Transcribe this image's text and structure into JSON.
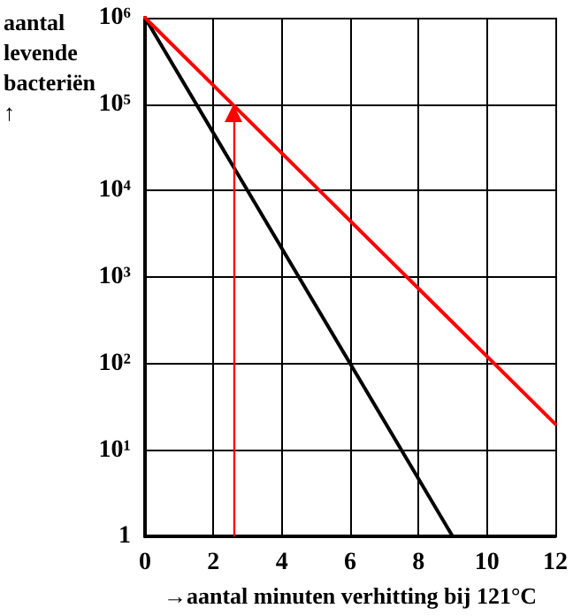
{
  "chart_data": {
    "type": "line",
    "xlabel": "→aantal minuten verhitting bij 121°C",
    "ylabel": "aantal levende bacteriën ↑",
    "series": [
      {
        "color": "#000000",
        "x": [
          0,
          9
        ],
        "values": [
          1000000,
          1
        ]
      },
      {
        "color": "#ff0000",
        "x": [
          0,
          12
        ],
        "values": [
          1000000,
          20
        ]
      }
    ],
    "log": "y",
    "xlim": [
      0,
      12
    ],
    "xticks": [
      0,
      2,
      4,
      6,
      8,
      10,
      12
    ],
    "ylim": [
      1,
      1000000
    ],
    "yticks": [
      1,
      {
        "value": 10,
        "label": "10¹"
      },
      {
        "value": 100,
        "label": "10²"
      },
      {
        "value": 1000,
        "label": "10³"
      },
      {
        "value": 10000,
        "label": "10⁴"
      },
      {
        "value": 100000,
        "label": "10⁵"
      },
      {
        "value": 1000000,
        "label": "10⁶"
      }
    ],
    "grid": true,
    "marker": "none",
    "line_style": "solid",
    "ref_lines": [
      {
        "axis": "x",
        "value": 2.6,
        "color": "#ff0000"
      }
    ]
  }
}
